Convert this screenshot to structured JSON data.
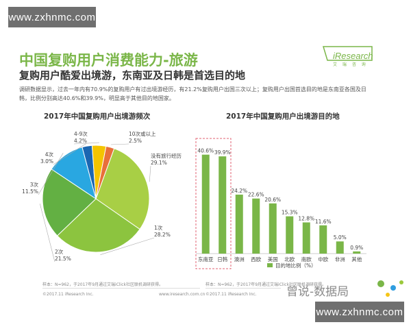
{
  "watermark": {
    "top": "www.zxhnmc.com",
    "bottom": "www.zxhnmc.com"
  },
  "header": {
    "title": "中国复购用户消费能力-旅游",
    "subtitle": "复购用户酷爱出境游，东南亚及日韩是首选目的地",
    "description": "调研数据显示，过去一年内有70.9%的复购用户有过出境游经历，有21.2%复购用户出国三次以上；复购用户出国首选目的地是东南亚各国及日韩，比例分别高达40.6%和39.9%，明显高于其他目的地国家。",
    "logo_text": "iResearch",
    "logo_sub": "艾 瑞 咨 询"
  },
  "colors": {
    "accent_green": "#7ab648",
    "pie": [
      "#9bc93c",
      "#5fae35",
      "#2f9de0",
      "#1f5fa8",
      "#f5c518",
      "#e8703a"
    ],
    "bar": "#7ab648",
    "highlight_border": "#e06070"
  },
  "chart_data": [
    {
      "type": "pie",
      "title": "2017年中国复购用户出境游频次",
      "slices": [
        {
          "name": "没有旅行经历",
          "label": "29.1%",
          "value": 29.1
        },
        {
          "name": "1次",
          "label": "28.2%",
          "value": 28.2
        },
        {
          "name": "2次",
          "label": "21.5%",
          "value": 21.5
        },
        {
          "name": "3次",
          "label": "11.5%",
          "value": 11.5
        },
        {
          "name": "4次",
          "label": "3.0%",
          "value": 3.0
        },
        {
          "name": "4-9次",
          "label": "4.2%",
          "value": 4.2
        },
        {
          "name": "10次或以上",
          "label": "2.5%",
          "value": 2.5
        }
      ]
    },
    {
      "type": "bar",
      "title": "2017年中国复购用户出境游目的地",
      "categories": [
        "东南亚",
        "日韩",
        "澳洲",
        "西欧",
        "美国",
        "北欧",
        "南欧",
        "中欧",
        "非洲",
        "其他"
      ],
      "values": [
        40.6,
        39.9,
        24.2,
        22.6,
        20.6,
        15.3,
        12.8,
        11.6,
        5.0,
        0.9
      ],
      "value_labels": [
        "40.6%",
        "39.9%",
        "24.2%",
        "22.6%",
        "20.6%",
        "15.3%",
        "12.8%",
        "11.6%",
        "5.0%",
        "0.9%"
      ],
      "legend": "目的地比例（%）",
      "ylim": [
        0,
        45
      ]
    }
  ],
  "footer": {
    "source_left": "样本：N=962，于2017年9月通过艾瑞iClick社区联机调研获得。",
    "source_right": "样本：N=962，于2017年9月通过艾瑞iClick社区联机调研获得。",
    "copyright_left": "©2017.11 iResearch Inc.",
    "url": "www.iresearch.com.cn",
    "copyright_right": "©2017.11 iResearch Inc.",
    "credit": "曾说-数据局"
  }
}
